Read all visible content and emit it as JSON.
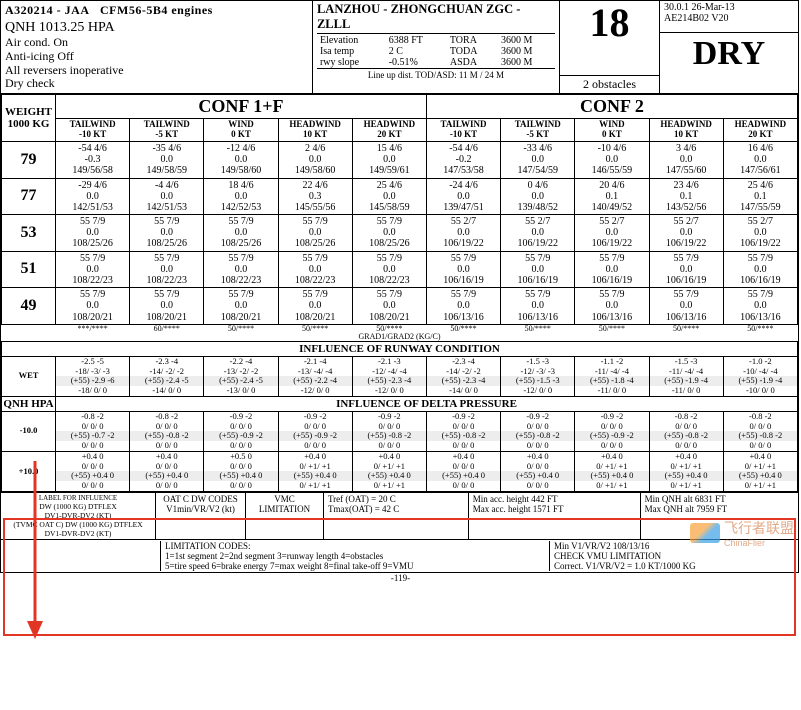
{
  "header": {
    "aircraft": "A320214 - JAA",
    "engines": "CFM56-5B4  engines",
    "qnh_line": "QNH        1013.25 HPA",
    "conds": [
      "Air cond.  On",
      "Anti-icing Off",
      "All reversers inoperative",
      "Dry check"
    ],
    "airport": "LANZHOU - ZHONGCHUAN ZGC - ZLLL",
    "elev_l": "Elevation",
    "elev_v": "6388 FT",
    "tora_l": "TORA",
    "tora_v": "3600 M",
    "isa_l": "Isa  temp",
    "isa_v": "2 C",
    "toda_l": "TODA",
    "toda_v": "3600 M",
    "slope_l": "rwy slope",
    "slope_v": "-0.51%",
    "asda_l": "ASDA",
    "asda_v": "3600 M",
    "lineup": "Line up dist. TOD/ASD:  11 M  / 24 M",
    "rwy": "18",
    "obstacles": "2 obstacles",
    "meta1": "30.0.1  26-Mar-13",
    "meta2": "AE214B02 V20",
    "surface": "DRY"
  },
  "weight_hdr": {
    "l1": "WEIGHT",
    "l2": "1000 KG"
  },
  "confs": [
    "CONF 1+F",
    "CONF 2"
  ],
  "winds": [
    "TAILWIND -10 KT",
    "TAILWIND -5 KT",
    "WIND 0 KT",
    "HEADWIND 10 KT",
    "HEADWIND 20 KT",
    "TAILWIND -10 KT",
    "TAILWIND -5 KT",
    "WIND 0 KT",
    "HEADWIND 10 KT",
    "HEADWIND 20 KT"
  ],
  "rows": [
    {
      "wt": "79",
      "c": [
        [
          "-54 4/6",
          "-0.3",
          "149/56/58"
        ],
        [
          "-35 4/6",
          "0.0",
          "149/58/59"
        ],
        [
          "-12 4/6",
          "0.0",
          "149/58/60"
        ],
        [
          "2 4/6",
          "0.0",
          "149/58/60"
        ],
        [
          "15 4/6",
          "0.0",
          "149/59/61"
        ],
        [
          "-54 4/6",
          "-0.2",
          "147/53/58"
        ],
        [
          "-33 4/6",
          "0.0",
          "147/54/59"
        ],
        [
          "-10 4/6",
          "0.0",
          "146/55/59"
        ],
        [
          "3 4/6",
          "0.0",
          "147/55/60"
        ],
        [
          "16 4/6",
          "0.0",
          "147/56/61"
        ]
      ]
    },
    {
      "wt": "77",
      "c": [
        [
          "-29 4/6",
          "0.0",
          "142/51/53"
        ],
        [
          "-4 4/6",
          "0.0",
          "142/51/53"
        ],
        [
          "18 4/6",
          "0.0",
          "142/52/53"
        ],
        [
          "22 4/6",
          "0.3",
          "145/55/56"
        ],
        [
          "25 4/6",
          "0.0",
          "145/58/59"
        ],
        [
          "-24 4/6",
          "0.0",
          "139/47/51"
        ],
        [
          "0 4/6",
          "0.0",
          "139/48/52"
        ],
        [
          "20 4/6",
          "0.1",
          "140/49/52"
        ],
        [
          "23 4/6",
          "0.1",
          "143/52/56"
        ],
        [
          "25 4/6",
          "0.1",
          "147/55/59"
        ]
      ]
    },
    {
      "wt": "53",
      "c": [
        [
          "55 7/9",
          "0.0",
          "108/25/26"
        ],
        [
          "55 7/9",
          "0.0",
          "108/25/26"
        ],
        [
          "55 7/9",
          "0.0",
          "108/25/26"
        ],
        [
          "55 7/9",
          "0.0",
          "108/25/26"
        ],
        [
          "55 7/9",
          "0.0",
          "108/25/26"
        ],
        [
          "55 2/7",
          "0.0",
          "106/19/22"
        ],
        [
          "55 2/7",
          "0.0",
          "106/19/22"
        ],
        [
          "55 2/7",
          "0.0",
          "106/19/22"
        ],
        [
          "55 2/7",
          "0.0",
          "106/19/22"
        ],
        [
          "55 2/7",
          "0.0",
          "106/19/22"
        ]
      ]
    },
    {
      "wt": "51",
      "c": [
        [
          "55 7/9",
          "0.0",
          "108/22/23"
        ],
        [
          "55 7/9",
          "0.0",
          "108/22/23"
        ],
        [
          "55 7/9",
          "0.0",
          "108/22/23"
        ],
        [
          "55 7/9",
          "0.0",
          "108/22/23"
        ],
        [
          "55 7/9",
          "0.0",
          "108/22/23"
        ],
        [
          "55 7/9",
          "0.0",
          "106/16/19"
        ],
        [
          "55 7/9",
          "0.0",
          "106/16/19"
        ],
        [
          "55 7/9",
          "0.0",
          "106/16/19"
        ],
        [
          "55 7/9",
          "0.0",
          "106/16/19"
        ],
        [
          "55 7/9",
          "0.0",
          "106/16/19"
        ]
      ]
    },
    {
      "wt": "49",
      "c": [
        [
          "55 7/9",
          "0.0",
          "108/20/21"
        ],
        [
          "55 7/9",
          "0.0",
          "108/20/21"
        ],
        [
          "55 7/9",
          "0.0",
          "108/20/21"
        ],
        [
          "55 7/9",
          "0.0",
          "108/20/21"
        ],
        [
          "55 7/9",
          "0.0",
          "108/20/21"
        ],
        [
          "55 7/9",
          "0.0",
          "106/13/16"
        ],
        [
          "55 7/9",
          "0.0",
          "106/13/16"
        ],
        [
          "55 7/9",
          "0.0",
          "106/13/16"
        ],
        [
          "55 7/9",
          "0.0",
          "106/13/16"
        ],
        [
          "55 7/9",
          "0.0",
          "106/13/16"
        ]
      ]
    }
  ],
  "grad_vals": [
    "***/****",
    "60/****",
    "50/****",
    "50/****",
    "50/****",
    "50/****",
    "50/****",
    "50/****",
    "50/****",
    "50/****"
  ],
  "grad_title": "GRAD1/GRAD2 (KG/C)",
  "inf_rwy_title": "INFLUENCE OF RUNWAY CONDITION",
  "wet_label": "WET",
  "wet": [
    [
      "-2.5 -5",
      "-18/ -3/ -3",
      "(+55) -2.9 -6",
      "-18/ 0/ 0"
    ],
    [
      "-2.3 -4",
      "-14/ -2/ -2",
      "(+55) -2.4 -5",
      "-14/ 0/ 0"
    ],
    [
      "-2.2 -4",
      "-13/ -2/ -2",
      "(+55) -2.4 -5",
      "-13/ 0/ 0"
    ],
    [
      "-2.1 -4",
      "-13/ -4/ -4",
      "(+55) -2.2 -4",
      "-12/ 0/ 0"
    ],
    [
      "-2.1 -3",
      "-12/ -4/ -4",
      "(+55) -2.3 -4",
      "-12/ 0/ 0"
    ],
    [
      "-2.3 -4",
      "-14/ -2/ -2",
      "(+55) -2.3 -4",
      "-14/ 0/ 0"
    ],
    [
      "-1.5 -3",
      "-12/ -3/ -3",
      "(+55) -1.5 -3",
      "-12/ 0/ 0"
    ],
    [
      "-1.1 -2",
      "-11/ -4/ -4",
      "(+55) -1.8 -4",
      "-11/ 0/ 0"
    ],
    [
      "-1.5 -3",
      "-11/ -4/ -4",
      "(+55) -1.9 -4",
      "-11/ 0/ 0"
    ],
    [
      "-1.0 -2",
      "-10/ -4/ -4",
      "(+55) -1.9 -4",
      "-10/ 0/ 0"
    ]
  ],
  "inf_dp_title": "INFLUENCE OF DELTA PRESSURE",
  "qnh_label": "QNH HPA",
  "dp_m10_label": "-10.0",
  "dp_p10_label": "+10.0",
  "dp_m10": [
    [
      "-0.8 -2",
      "0/ 0/ 0",
      "(+55) -0.7 -2",
      "0/ 0/ 0"
    ],
    [
      "-0.8 -2",
      "0/ 0/ 0",
      "(+55) -0.8 -2",
      "0/ 0/ 0"
    ],
    [
      "-0.9 -2",
      "0/ 0/ 0",
      "(+55) -0.9 -2",
      "0/ 0/ 0"
    ],
    [
      "-0.9 -2",
      "0/ 0/ 0",
      "(+55) -0.9 -2",
      "0/ 0/ 0"
    ],
    [
      "-0.9 -2",
      "0/ 0/ 0",
      "(+55) -0.8 -2",
      "0/ 0/ 0"
    ],
    [
      "-0.9 -2",
      "0/ 0/ 0",
      "(+55) -0.8 -2",
      "0/ 0/ 0"
    ],
    [
      "-0.9 -2",
      "0/ 0/ 0",
      "(+55) -0.8 -2",
      "0/ 0/ 0"
    ],
    [
      "-0.9 -2",
      "0/ 0/ 0",
      "(+55) -0.9 -2",
      "0/ 0/ 0"
    ],
    [
      "-0.8 -2",
      "0/ 0/ 0",
      "(+55) -0.8 -2",
      "0/ 0/ 0"
    ],
    [
      "-0.8 -2",
      "0/ 0/ 0",
      "(+55) -0.8 -2",
      "0/ 0/ 0"
    ]
  ],
  "dp_p10": [
    [
      "+0.4 0",
      "0/ 0/ 0",
      "(+55) +0.4 0",
      "0/ 0/ 0"
    ],
    [
      "+0.4 0",
      "0/ 0/ 0",
      "(+55) +0.4 0",
      "0/ 0/ 0"
    ],
    [
      "+0.5 0",
      "0/ 0/ 0",
      "(+55) +0.4 0",
      "0/ 0/ 0"
    ],
    [
      "+0.4 0",
      "0/ +1/ +1",
      "(+55) +0.4 0",
      "0/ +1/ +1"
    ],
    [
      "+0.4 0",
      "0/ +1/ +1",
      "(+55) +0.4 0",
      "0/ +1/ +1"
    ],
    [
      "+0.4 0",
      "0/ 0/ 0",
      "(+55) +0.4 0",
      "0/ 0/ 0"
    ],
    [
      "+0.4 0",
      "0/ 0/ 0",
      "(+55) +0.4 0",
      "0/ 0/ 0"
    ],
    [
      "+0.4 0",
      "0/ +1/ +1",
      "(+55) +0.4 0",
      "0/ +1/ +1"
    ],
    [
      "+0.4 0",
      "0/ +1/ +1",
      "(+55) +0.4 0",
      "0/ +1/ +1"
    ],
    [
      "+0.4 0",
      "0/ +1/ +1",
      "(+55) +0.4 0",
      "0/ +1/ +1"
    ]
  ],
  "footer": {
    "label_title": "LABEL FOR INFLUENCE",
    "labels": [
      "DW (1000 KG) DTFLEX",
      "DV1-DVR-DV2 (KT)",
      "(TVMC OAT C) DW (1000 KG) DTFLEX",
      "DV1-DVR-DV2 (KT)"
    ],
    "oat_title": "OAT C DW CODES",
    "oat_sub": "V1min/VR/V2 (kt)",
    "vmc_title": "VMC",
    "vmc_sub": "LIMITATION",
    "tref": "Tref  (OAT)  =    20 C",
    "tmax": "Tmax(OAT)  =    42 C",
    "minacc": "Min acc. height         442 FT",
    "maxacc": "Max acc. height       1571 FT",
    "minqnh": "Min QNH alt          6831 FT",
    "maxqnh": "Max QNH alt          7959 FT",
    "lim_title": "LIMITATION CODES:",
    "lim1": "1=1st segment  2=2nd segment  3=runway length  4=obstacles",
    "lim2": "5=tire speed  6=brake energy  7=max weight  8=final take-off  9=VMU",
    "r1": "Min V1/VR/V2            108/13/16",
    "r2": "CHECK VMU LIMITATION",
    "r3": "Correct. V1/VR/V2  =  1.0 KT/1000 KG"
  },
  "watermark": "飞行者联盟",
  "watermark2": "ChinaFlier",
  "page": "-119-",
  "colors": {
    "red": "#e33524",
    "shade": "#ededed"
  }
}
